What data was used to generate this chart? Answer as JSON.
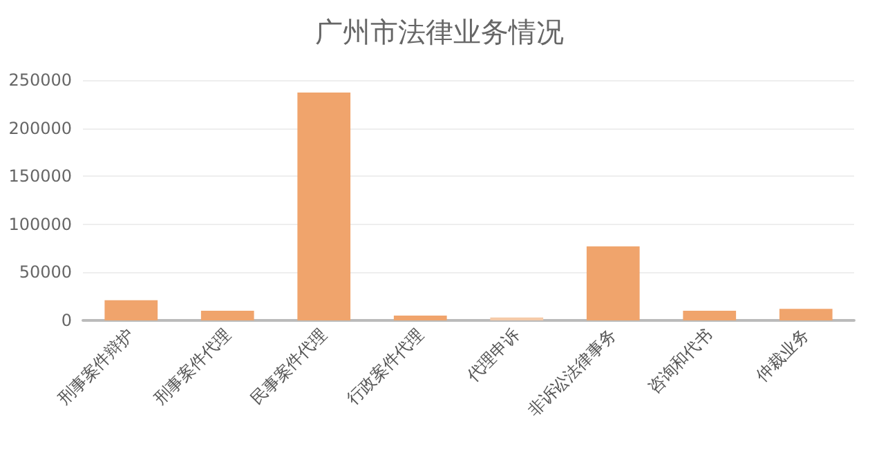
{
  "chart_data": {
    "type": "bar",
    "title": "广州市法律业务情况",
    "categories": [
      "刑事案件辩护",
      "刑事案件代理",
      "民事案件代理",
      "行政案件代理",
      "代理申诉",
      "非诉讼法律事务",
      "咨询和代书",
      "仲裁业务"
    ],
    "values": [
      21000,
      10000,
      237000,
      5000,
      3000,
      77000,
      10000,
      12000
    ],
    "colors": [
      "#f0a46c",
      "#f0a46c",
      "#f0a46c",
      "#f0a46c",
      "#f5caa8",
      "#f0a46c",
      "#f0a46c",
      "#f0a46c"
    ],
    "ylim": [
      0,
      250000
    ],
    "yticks": [
      0,
      50000,
      100000,
      150000,
      200000,
      250000
    ],
    "grid": "y"
  }
}
